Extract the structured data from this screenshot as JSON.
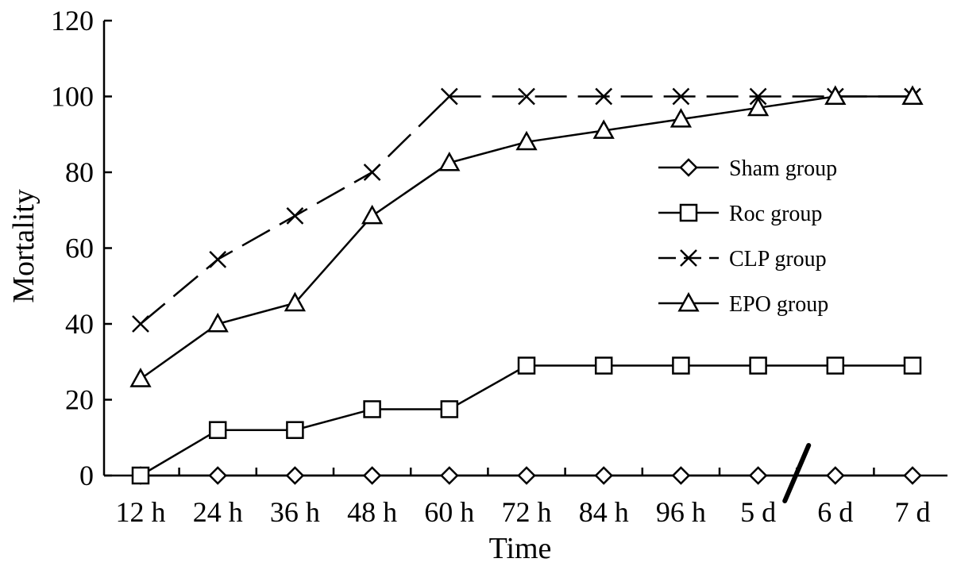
{
  "chart_data": {
    "type": "line",
    "title": "",
    "xlabel": "Time",
    "ylabel": "Mortality",
    "categories": [
      "12 h",
      "24 h",
      "36 h",
      "48 h",
      "60 h",
      "72 h",
      "84 h",
      "96 h",
      "5 d",
      "6 d",
      "7 d"
    ],
    "ylim": [
      0,
      120
    ],
    "yticks": [
      "0",
      "20",
      "40",
      "60",
      "80",
      "100",
      "120"
    ],
    "axis_break_between": [
      "5 d",
      "6 d"
    ],
    "legend_position": "right-middle",
    "grid": false,
    "series": [
      {
        "name": "Sham group",
        "marker": "diamond",
        "dashed": false,
        "values": [
          0,
          0,
          0,
          0,
          0,
          0,
          0,
          0,
          0,
          0,
          0
        ]
      },
      {
        "name": "Roc group",
        "marker": "square",
        "dashed": false,
        "values": [
          0,
          12,
          12,
          17.5,
          17.5,
          29,
          29,
          29,
          29,
          29,
          29
        ]
      },
      {
        "name": "CLP group",
        "marker": "x",
        "dashed": true,
        "values": [
          40,
          57,
          68.5,
          80,
          100,
          100,
          100,
          100,
          100,
          100,
          100
        ]
      },
      {
        "name": "EPO group",
        "marker": "triangle",
        "dashed": false,
        "values": [
          25.5,
          40,
          45.5,
          68.5,
          82.5,
          88,
          91,
          94,
          97,
          100,
          100
        ]
      }
    ]
  }
}
